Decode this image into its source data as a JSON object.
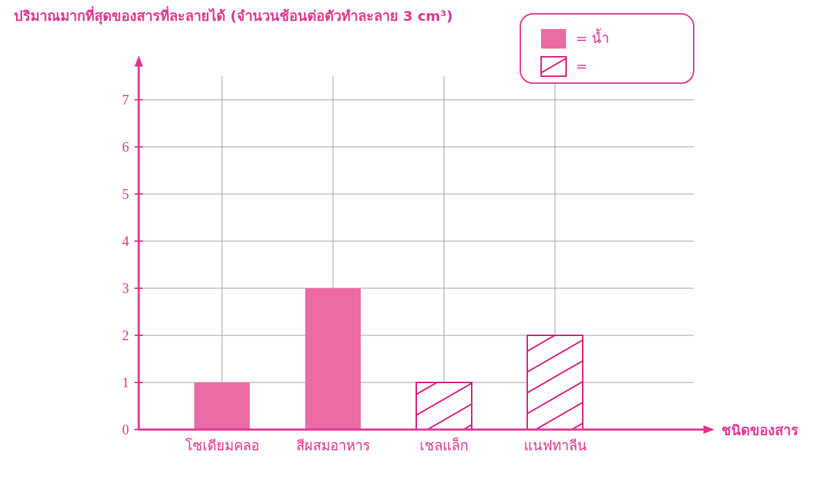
{
  "chart_data": {
    "type": "bar",
    "ylabel": "ปริมาณมากที่สุดของสารที่ละลายได้ (จำนวนช้อนต่อตัวทำละลาย 3 cm³)",
    "xlabel": "ชนิดของสาร",
    "categories": [
      "โซเดียมคลอ",
      "สีผสมอาหาร",
      "เชลแล็ก",
      "แนฟทาลีน"
    ],
    "series": [
      {
        "name": "= น้ำ",
        "color": "#ec6aa5",
        "values": [
          1,
          3,
          null,
          null
        ]
      },
      {
        "name": "=",
        "color": "#d6137a",
        "values": [
          null,
          null,
          1,
          2
        ]
      }
    ],
    "ylim": [
      0,
      7.5
    ],
    "yticks": [
      0,
      1,
      2,
      3,
      4,
      5,
      6,
      7
    ],
    "grid": true,
    "legend": "top right"
  }
}
